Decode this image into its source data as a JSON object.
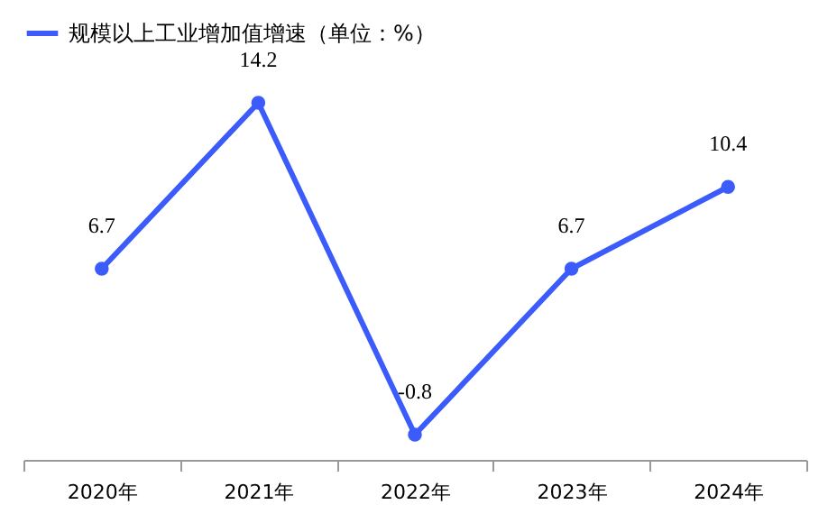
{
  "chart_data": {
    "type": "line",
    "categories": [
      "2020年",
      "2021年",
      "2022年",
      "2023年",
      "2024年"
    ],
    "series": [
      {
        "name": "规模以上工业增加值增速（单位：%）",
        "color": "#3b5bfb",
        "values": [
          6.7,
          14.2,
          -0.8,
          6.7,
          10.4
        ]
      }
    ],
    "data_labels": true,
    "marker": "circle",
    "legend": "top",
    "grid": false,
    "line_style": "solid"
  }
}
